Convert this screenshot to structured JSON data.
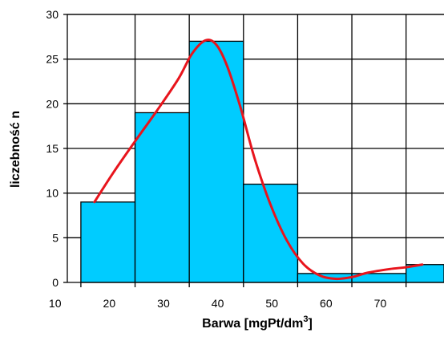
{
  "chart_data": {
    "type": "bar",
    "histogram": true,
    "bins": [
      {
        "from": 10,
        "to": 20,
        "count": 9
      },
      {
        "from": 20,
        "to": 30,
        "count": 19
      },
      {
        "from": 30,
        "to": 40,
        "count": 27
      },
      {
        "from": 40,
        "to": 50,
        "count": 11
      },
      {
        "from": 50,
        "to": 60,
        "count": 1
      },
      {
        "from": 60,
        "to": 70,
        "count": 1
      },
      {
        "from": 70,
        "to": 77,
        "count": 2
      }
    ],
    "fit_curve": {
      "type": "line",
      "points": [
        [
          12.5,
          9
        ],
        [
          16,
          12.3
        ],
        [
          20,
          15.8
        ],
        [
          24,
          19.2
        ],
        [
          28,
          22.8
        ],
        [
          30.5,
          25.6
        ],
        [
          33,
          27.1
        ],
        [
          35,
          26.6
        ],
        [
          37,
          24.2
        ],
        [
          39.5,
          19.5
        ],
        [
          42,
          14
        ],
        [
          45,
          8.7
        ],
        [
          48,
          4.7
        ],
        [
          51,
          2.1
        ],
        [
          54,
          0.8
        ],
        [
          57,
          0.4
        ],
        [
          60,
          0.6
        ],
        [
          63,
          1.1
        ],
        [
          67,
          1.5
        ],
        [
          70,
          1.7
        ],
        [
          73,
          2.0
        ]
      ]
    },
    "xlabel_main": "Barwa [mgPt/dm",
    "xlabel_sup": "3",
    "xlabel_end": "]",
    "ylabel": "liczebność n",
    "x_ticks": [
      10,
      20,
      30,
      40,
      50,
      60,
      70
    ],
    "y_ticks": [
      0,
      5,
      10,
      15,
      20,
      25,
      30
    ],
    "xlim": [
      7.5,
      77
    ],
    "ylim": [
      0,
      30
    ],
    "grid": true,
    "colors": {
      "bar_fill": "#00ccff",
      "bar_stroke": "#000000",
      "curve": "#e8141c",
      "grid": "#000000"
    }
  }
}
